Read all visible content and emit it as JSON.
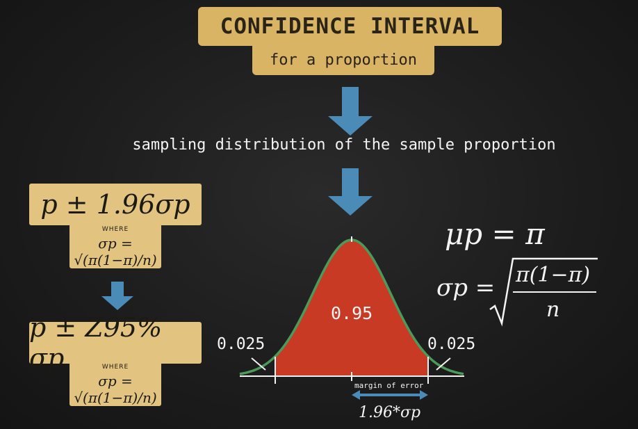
{
  "header": {
    "title": "CONFIDENCE INTERVAL",
    "subtitle": "for a proportion"
  },
  "sampling_label": "sampling distribution of the sample proportion",
  "left_panel": {
    "formula1": "p ± 1.96σp",
    "where1": "WHERE",
    "sigma_def1": "σp = √(π(1−π)/n)",
    "formula2": "p ± Z95% σp",
    "where2": "WHERE",
    "sigma_def2": "σp = √(π(1−π)/n)"
  },
  "right_panel": {
    "mu_formula": "μp = π",
    "sigma_formula_lhs": "σp =",
    "sigma_formula_num": "π(1−π)",
    "sigma_formula_den": "n"
  },
  "distribution": {
    "center_area": "0.95",
    "left_tail": "0.025",
    "right_tail": "0.025",
    "margin_label": "margin of error",
    "margin_value": "1.96*σp"
  },
  "colors": {
    "box": "#d9b465",
    "arrow": "#4b8bb8",
    "fill": "#c93a24",
    "curve": "#4c9a5a"
  }
}
